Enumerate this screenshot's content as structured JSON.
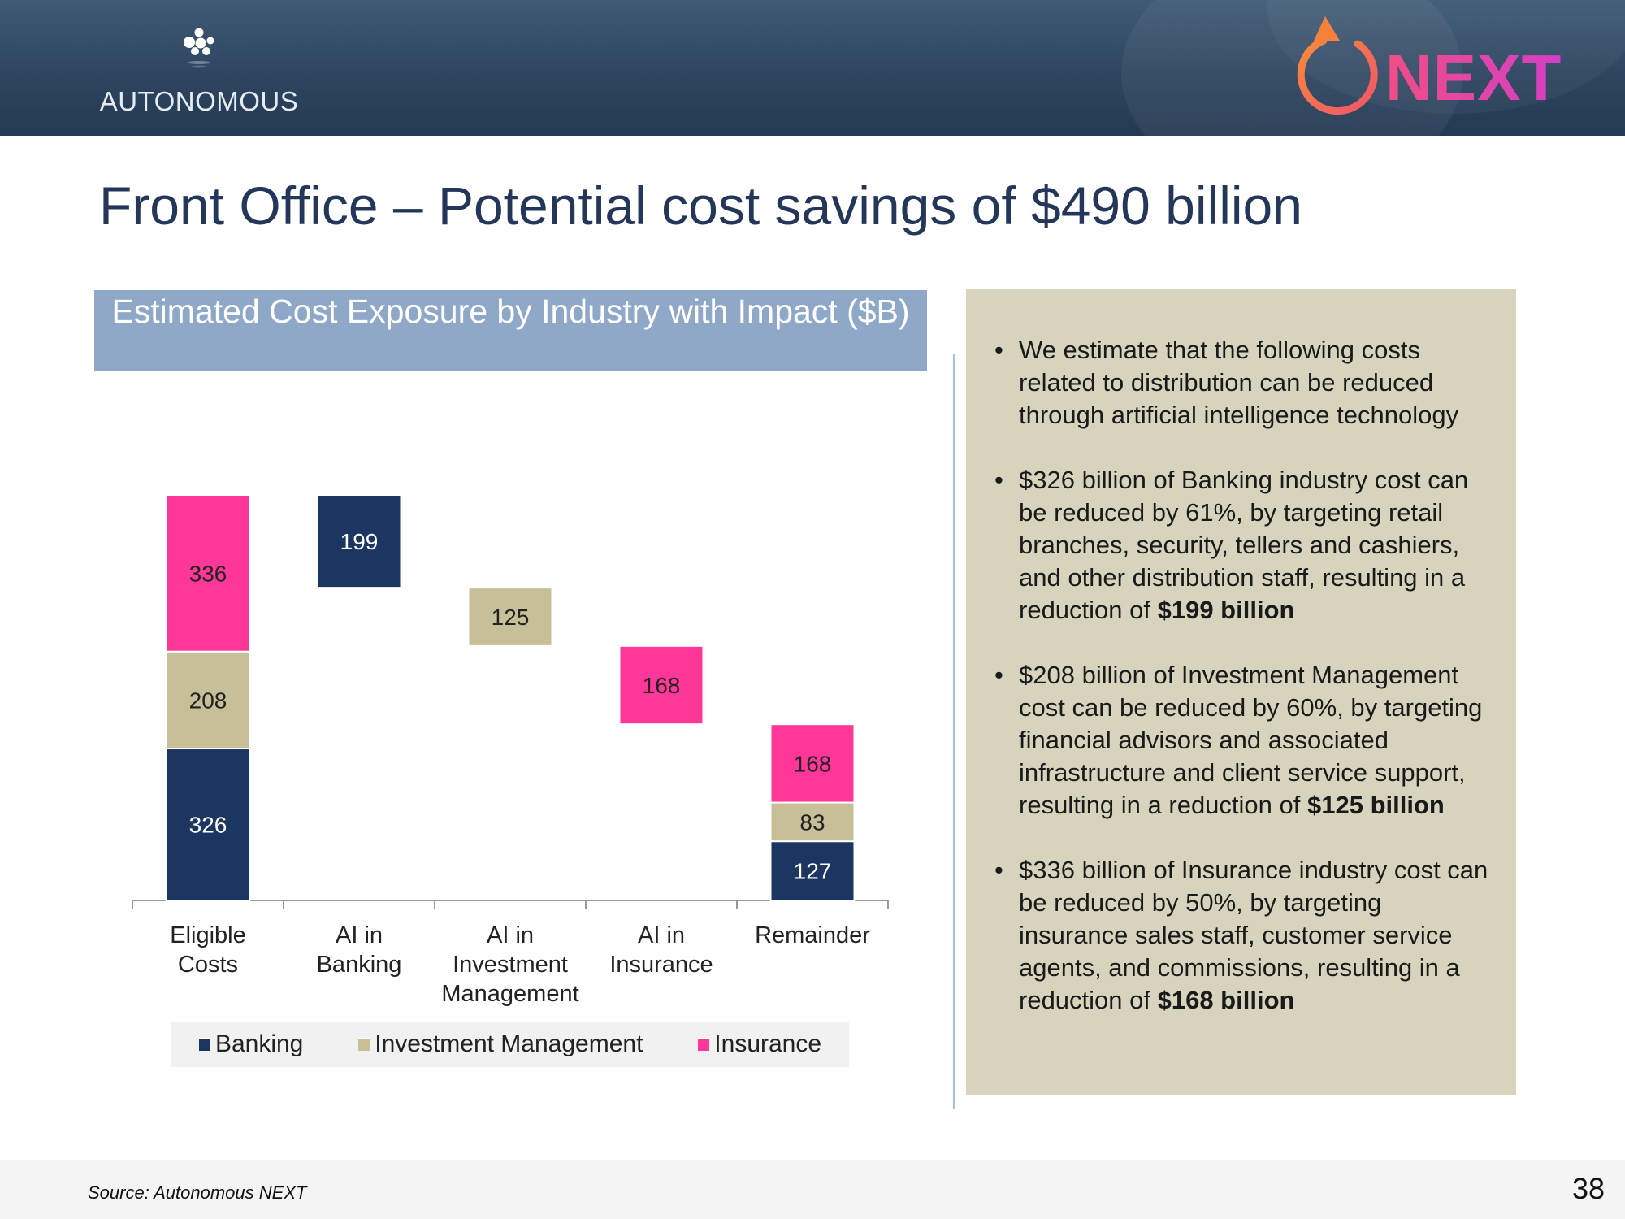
{
  "header": {
    "left_logo_text": "AUTONOMOUS",
    "right_logo_text": "NEXT"
  },
  "title": "Front Office – Potential cost savings of $490 billion",
  "chart_title": "Estimated Cost Exposure by Industry with Impact ($B)",
  "chart_data": {
    "type": "waterfall",
    "title": "Estimated Cost Exposure by Industry with Impact ($B)",
    "categories": [
      [
        "Eligible",
        "Costs"
      ],
      [
        "AI in",
        "Banking"
      ],
      [
        "AI in",
        "Investment",
        "Management"
      ],
      [
        "AI in",
        "Insurance"
      ],
      [
        "Remainder"
      ]
    ],
    "series": [
      {
        "name": "Banking",
        "color": "#1b3660",
        "values": [
          326,
          199,
          0,
          0,
          127
        ]
      },
      {
        "name": "Investment Management",
        "color": "#c6bf98",
        "values": [
          208,
          0,
          125,
          0,
          83
        ]
      },
      {
        "name": "Insurance",
        "color": "#ff3799",
        "values": [
          336,
          0,
          0,
          168,
          168
        ]
      }
    ],
    "total_eligible": 870,
    "ylim": [
      0,
      870
    ],
    "legend_position": "bottom"
  },
  "legend": [
    "Banking",
    "Investment Management",
    "Insurance"
  ],
  "panel": {
    "bullets": [
      [
        {
          "t": "We estimate that the following costs related to distribution can be reduced through artificial intelligence technology"
        }
      ],
      [
        {
          "t": "$326 billion of Banking industry cost can be reduced by 61%, by targeting retail branches, security, tellers and cashiers, and other distribution staff, resulting in a reduction of "
        },
        {
          "t": "$199 billion",
          "b": true
        }
      ],
      [
        {
          "t": "$208 billion of Investment Management cost can be reduced by 60%, by targeting financial advisors and associated infrastructure and client service support, resulting in a reduction of "
        },
        {
          "t": "$125 billion",
          "b": true
        }
      ],
      [
        {
          "t": "$336 billion of Insurance industry cost can be reduced by 50%, by targeting insurance sales staff, customer service agents, and commissions, resulting in a reduction of "
        },
        {
          "t": "$168 billion",
          "b": true
        }
      ]
    ]
  },
  "footer": {
    "source": "Source: Autonomous NEXT",
    "page_number": "38"
  }
}
